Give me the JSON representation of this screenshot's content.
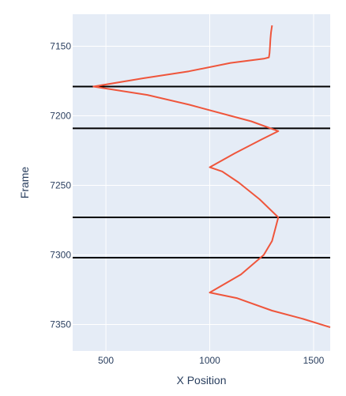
{
  "chart_data": {
    "type": "line",
    "title": "",
    "xlabel": "X Position",
    "ylabel": "Frame",
    "xlim": [
      340,
      1580
    ],
    "ylim": [
      7369,
      7127
    ],
    "y_reversed": true,
    "x_ticks": [
      500,
      1000,
      1500
    ],
    "y_ticks": [
      7150,
      7200,
      7250,
      7300,
      7350
    ],
    "x_tick_labels": [
      "500",
      "1000",
      "1500"
    ],
    "y_tick_labels": [
      "7150",
      "7200",
      "7250",
      "7300",
      "7350"
    ],
    "grid": true,
    "legend": "none",
    "colors": {
      "plot_bg": "#e5ecf6",
      "grid": "#ffffff",
      "line": "#ef553b",
      "hlines": "#000000",
      "text": "#2a3f5f"
    },
    "series": [
      {
        "x": [
          1300,
          1295,
          1292,
          1290,
          1288,
          1285,
          1260,
          1100,
          900,
          680,
          440,
          700,
          900,
          1100,
          1200,
          1330,
          1250,
          1120,
          1000,
          1060,
          1140,
          1240,
          1330,
          1300,
          1260,
          1150,
          1000,
          1130,
          1300,
          1450,
          1580
        ],
        "y": [
          7135,
          7140,
          7145,
          7150,
          7155,
          7158,
          7159,
          7162,
          7168,
          7173,
          7179,
          7185,
          7192,
          7200,
          7204,
          7211,
          7217,
          7227,
          7237,
          7240,
          7248,
          7260,
          7273,
          7290,
          7300,
          7314,
          7327,
          7331,
          7340,
          7346,
          7352
        ]
      }
    ],
    "hlines": [
      7179,
      7209,
      7273,
      7302
    ]
  }
}
